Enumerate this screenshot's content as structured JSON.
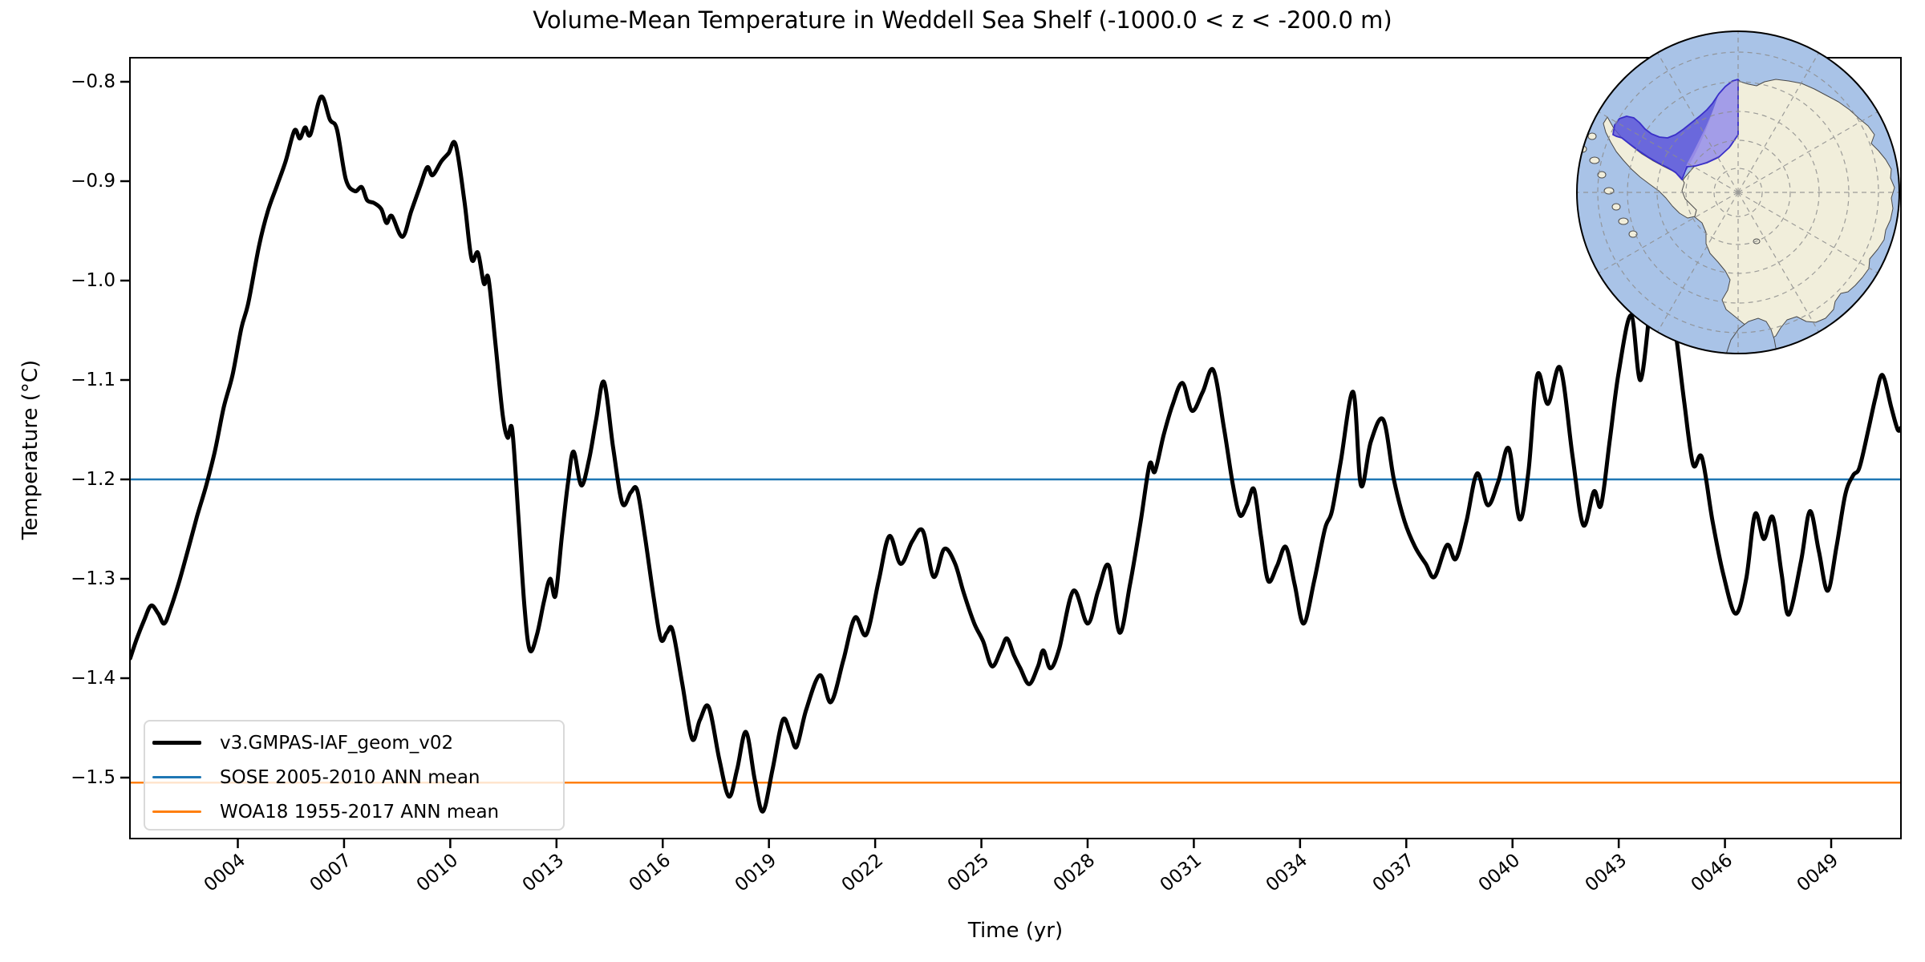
{
  "title": "Volume-Mean Temperature in Weddell Sea Shelf (-1000.0 < z < -200.0 m)",
  "axes": {
    "xlabel": "Time (yr)",
    "ylabel": "Temperature (°C)",
    "x_tick_years": [
      4,
      7,
      10,
      13,
      16,
      19,
      22,
      25,
      28,
      31,
      34,
      37,
      40,
      43,
      46,
      49
    ],
    "x_tick_labels": [
      "0004",
      "0007",
      "0010",
      "0013",
      "0016",
      "0019",
      "0022",
      "0025",
      "0028",
      "0031",
      "0034",
      "0037",
      "0040",
      "0043",
      "0046",
      "0049"
    ],
    "y_tick_values": [
      -0.8,
      -0.9,
      -1.0,
      -1.1,
      -1.2,
      -1.3,
      -1.4,
      -1.5
    ],
    "y_tick_labels": [
      "−0.8",
      "−0.9",
      "−1.0",
      "−1.1",
      "−1.2",
      "−1.3",
      "−1.4",
      "−1.5"
    ]
  },
  "legend": {
    "entries": [
      {
        "label": "v3.GMPAS-IAF_geom_v02",
        "color": "#000000",
        "thickness": 5
      },
      {
        "label": "SOSE 2005-2010 ANN mean",
        "color": "#1f77b4",
        "thickness": 3
      },
      {
        "label": "WOA18 1955-2017 ANN mean",
        "color": "#ff7f0e",
        "thickness": 3
      }
    ]
  },
  "chart_data": {
    "type": "line",
    "title": "Volume-Mean Temperature in Weddell Sea Shelf (-1000.0 < z < -200.0 m)",
    "xlabel": "Time (yr)",
    "ylabel": "Temperature (°C)",
    "xlim": [
      0.95,
      50.98
    ],
    "ylim": [
      -1.561,
      -0.776
    ],
    "grid": false,
    "legend_position": "lower left",
    "series": [
      {
        "name": "v3.GMPAS-IAF_geom_v02",
        "color": "#000000",
        "style": "curve",
        "points": [
          [
            0.96,
            -1.38
          ],
          [
            1.15,
            -1.36
          ],
          [
            1.35,
            -1.342
          ],
          [
            1.55,
            -1.327
          ],
          [
            1.75,
            -1.335
          ],
          [
            1.92,
            -1.345
          ],
          [
            2.1,
            -1.33
          ],
          [
            2.35,
            -1.302
          ],
          [
            2.6,
            -1.27
          ],
          [
            2.85,
            -1.237
          ],
          [
            3.1,
            -1.207
          ],
          [
            3.35,
            -1.172
          ],
          [
            3.6,
            -1.128
          ],
          [
            3.85,
            -1.095
          ],
          [
            4.1,
            -1.048
          ],
          [
            4.3,
            -1.022
          ],
          [
            4.6,
            -0.965
          ],
          [
            4.85,
            -0.93
          ],
          [
            5.1,
            -0.905
          ],
          [
            5.35,
            -0.88
          ],
          [
            5.6,
            -0.849
          ],
          [
            5.75,
            -0.857
          ],
          [
            5.9,
            -0.846
          ],
          [
            6.05,
            -0.853
          ],
          [
            6.35,
            -0.815
          ],
          [
            6.6,
            -0.838
          ],
          [
            6.8,
            -0.848
          ],
          [
            7.05,
            -0.898
          ],
          [
            7.3,
            -0.91
          ],
          [
            7.5,
            -0.906
          ],
          [
            7.65,
            -0.919
          ],
          [
            7.85,
            -0.922
          ],
          [
            8.05,
            -0.928
          ],
          [
            8.2,
            -0.942
          ],
          [
            8.35,
            -0.935
          ],
          [
            8.65,
            -0.956
          ],
          [
            8.9,
            -0.93
          ],
          [
            9.15,
            -0.905
          ],
          [
            9.35,
            -0.886
          ],
          [
            9.5,
            -0.894
          ],
          [
            9.75,
            -0.88
          ],
          [
            9.95,
            -0.872
          ],
          [
            10.15,
            -0.863
          ],
          [
            10.4,
            -0.92
          ],
          [
            10.6,
            -0.978
          ],
          [
            10.78,
            -0.972
          ],
          [
            10.95,
            -1.003
          ],
          [
            11.08,
            -0.998
          ],
          [
            11.28,
            -1.065
          ],
          [
            11.48,
            -1.135
          ],
          [
            11.62,
            -1.158
          ],
          [
            11.75,
            -1.15
          ],
          [
            11.92,
            -1.235
          ],
          [
            12.1,
            -1.33
          ],
          [
            12.25,
            -1.372
          ],
          [
            12.45,
            -1.356
          ],
          [
            12.65,
            -1.322
          ],
          [
            12.82,
            -1.3
          ],
          [
            12.97,
            -1.317
          ],
          [
            13.15,
            -1.258
          ],
          [
            13.32,
            -1.205
          ],
          [
            13.48,
            -1.172
          ],
          [
            13.7,
            -1.206
          ],
          [
            13.92,
            -1.18
          ],
          [
            14.12,
            -1.14
          ],
          [
            14.34,
            -1.102
          ],
          [
            14.6,
            -1.168
          ],
          [
            14.86,
            -1.224
          ],
          [
            15.1,
            -1.213
          ],
          [
            15.28,
            -1.211
          ],
          [
            15.5,
            -1.258
          ],
          [
            15.75,
            -1.32
          ],
          [
            15.95,
            -1.361
          ],
          [
            16.12,
            -1.354
          ],
          [
            16.28,
            -1.352
          ],
          [
            16.55,
            -1.405
          ],
          [
            16.83,
            -1.461
          ],
          [
            17.05,
            -1.442
          ],
          [
            17.3,
            -1.429
          ],
          [
            17.6,
            -1.482
          ],
          [
            17.87,
            -1.519
          ],
          [
            18.1,
            -1.492
          ],
          [
            18.35,
            -1.454
          ],
          [
            18.6,
            -1.502
          ],
          [
            18.83,
            -1.534
          ],
          [
            19.1,
            -1.492
          ],
          [
            19.39,
            -1.442
          ],
          [
            19.6,
            -1.455
          ],
          [
            19.78,
            -1.469
          ],
          [
            20.05,
            -1.432
          ],
          [
            20.44,
            -1.397
          ],
          [
            20.75,
            -1.424
          ],
          [
            21.1,
            -1.382
          ],
          [
            21.43,
            -1.339
          ],
          [
            21.75,
            -1.356
          ],
          [
            22.1,
            -1.302
          ],
          [
            22.4,
            -1.257
          ],
          [
            22.72,
            -1.285
          ],
          [
            23.05,
            -1.262
          ],
          [
            23.35,
            -1.252
          ],
          [
            23.65,
            -1.298
          ],
          [
            23.95,
            -1.27
          ],
          [
            24.25,
            -1.284
          ],
          [
            24.5,
            -1.314
          ],
          [
            24.8,
            -1.345
          ],
          [
            25.05,
            -1.363
          ],
          [
            25.3,
            -1.388
          ],
          [
            25.55,
            -1.372
          ],
          [
            25.72,
            -1.36
          ],
          [
            25.92,
            -1.377
          ],
          [
            26.1,
            -1.39
          ],
          [
            26.35,
            -1.406
          ],
          [
            26.6,
            -1.388
          ],
          [
            26.75,
            -1.372
          ],
          [
            26.95,
            -1.39
          ],
          [
            27.2,
            -1.37
          ],
          [
            27.6,
            -1.312
          ],
          [
            28.0,
            -1.345
          ],
          [
            28.3,
            -1.312
          ],
          [
            28.6,
            -1.287
          ],
          [
            28.9,
            -1.354
          ],
          [
            29.2,
            -1.305
          ],
          [
            29.5,
            -1.242
          ],
          [
            29.75,
            -1.185
          ],
          [
            29.9,
            -1.192
          ],
          [
            30.15,
            -1.155
          ],
          [
            30.4,
            -1.125
          ],
          [
            30.68,
            -1.103
          ],
          [
            30.95,
            -1.131
          ],
          [
            31.25,
            -1.112
          ],
          [
            31.55,
            -1.09
          ],
          [
            31.85,
            -1.148
          ],
          [
            32.1,
            -1.205
          ],
          [
            32.3,
            -1.236
          ],
          [
            32.5,
            -1.226
          ],
          [
            32.7,
            -1.21
          ],
          [
            32.9,
            -1.258
          ],
          [
            33.1,
            -1.302
          ],
          [
            33.35,
            -1.287
          ],
          [
            33.6,
            -1.268
          ],
          [
            33.85,
            -1.306
          ],
          [
            34.1,
            -1.345
          ],
          [
            34.4,
            -1.302
          ],
          [
            34.7,
            -1.25
          ],
          [
            34.9,
            -1.232
          ],
          [
            35.15,
            -1.182
          ],
          [
            35.5,
            -1.112
          ],
          [
            35.72,
            -1.206
          ],
          [
            36.0,
            -1.162
          ],
          [
            36.35,
            -1.14
          ],
          [
            36.65,
            -1.2
          ],
          [
            36.95,
            -1.242
          ],
          [
            37.25,
            -1.268
          ],
          [
            37.55,
            -1.285
          ],
          [
            37.8,
            -1.298
          ],
          [
            38.15,
            -1.266
          ],
          [
            38.4,
            -1.28
          ],
          [
            38.7,
            -1.242
          ],
          [
            39.0,
            -1.194
          ],
          [
            39.3,
            -1.226
          ],
          [
            39.6,
            -1.202
          ],
          [
            39.9,
            -1.169
          ],
          [
            40.2,
            -1.24
          ],
          [
            40.45,
            -1.192
          ],
          [
            40.7,
            -1.095
          ],
          [
            41.0,
            -1.124
          ],
          [
            41.35,
            -1.088
          ],
          [
            41.7,
            -1.178
          ],
          [
            42.0,
            -1.246
          ],
          [
            42.3,
            -1.212
          ],
          [
            42.5,
            -1.226
          ],
          [
            42.75,
            -1.16
          ],
          [
            43.0,
            -1.092
          ],
          [
            43.35,
            -1.035
          ],
          [
            43.62,
            -1.1
          ],
          [
            43.95,
            -1.008
          ],
          [
            44.25,
            -0.965
          ],
          [
            44.6,
            -1.05
          ],
          [
            44.85,
            -1.122
          ],
          [
            45.1,
            -1.185
          ],
          [
            45.35,
            -1.178
          ],
          [
            45.65,
            -1.242
          ],
          [
            45.95,
            -1.295
          ],
          [
            46.3,
            -1.335
          ],
          [
            46.6,
            -1.3
          ],
          [
            46.85,
            -1.235
          ],
          [
            47.1,
            -1.26
          ],
          [
            47.35,
            -1.238
          ],
          [
            47.6,
            -1.295
          ],
          [
            47.8,
            -1.336
          ],
          [
            48.15,
            -1.282
          ],
          [
            48.4,
            -1.232
          ],
          [
            48.65,
            -1.272
          ],
          [
            48.9,
            -1.312
          ],
          [
            49.15,
            -1.268
          ],
          [
            49.4,
            -1.215
          ],
          [
            49.62,
            -1.196
          ],
          [
            49.8,
            -1.188
          ],
          [
            50.05,
            -1.15
          ],
          [
            50.25,
            -1.118
          ],
          [
            50.45,
            -1.095
          ],
          [
            50.7,
            -1.128
          ],
          [
            50.88,
            -1.15
          ],
          [
            50.97,
            -1.148
          ]
        ]
      },
      {
        "name": "SOSE 2005-2010 ANN mean",
        "color": "#1f77b4",
        "style": "hline",
        "value": -1.2
      },
      {
        "name": "WOA18 1955-2017 ANN mean",
        "color": "#ff7f0e",
        "style": "hline",
        "value": -1.505
      }
    ]
  },
  "inset": {
    "description": "South polar stereographic map of Antarctica; Weddell Sea shelf region highlighted",
    "highlight_region": "Weddell Sea shelf",
    "ocean_color": "#a9c3e7",
    "land_color": "#f1eedb",
    "region_fill_dark": "#5a51da",
    "region_fill_light": "#a194e8",
    "region_outline": "#3a30c8",
    "graticule_color": "#8d8d8d"
  }
}
